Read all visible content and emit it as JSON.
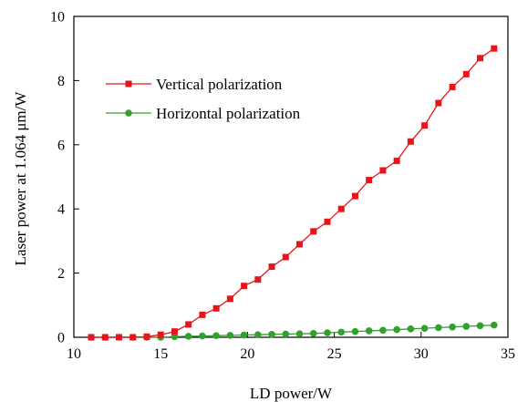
{
  "chart_data": {
    "type": "line",
    "xlabel": "LD power/W",
    "ylabel": "Laser power at 1.064 μm/W",
    "xlim": [
      10,
      35
    ],
    "ylim": [
      0,
      10
    ],
    "xticks": [
      10,
      15,
      20,
      25,
      30,
      35
    ],
    "yticks": [
      0,
      2,
      4,
      6,
      8,
      10
    ],
    "grid": false,
    "legend_position": "top-left",
    "series": [
      {
        "name": "Vertical polarization",
        "color": "#e8141c",
        "marker": "square",
        "x": [
          11.0,
          11.8,
          12.6,
          13.4,
          14.2,
          15.0,
          15.8,
          16.6,
          17.4,
          18.2,
          19.0,
          19.8,
          20.6,
          21.4,
          22.2,
          23.0,
          23.8,
          24.6,
          25.4,
          26.2,
          27.0,
          27.8,
          28.6,
          29.4,
          30.2,
          31.0,
          31.8,
          32.6,
          33.4,
          34.2
        ],
        "y": [
          0.0,
          0.0,
          0.0,
          0.0,
          0.02,
          0.08,
          0.18,
          0.4,
          0.7,
          0.9,
          1.2,
          1.6,
          1.8,
          2.2,
          2.5,
          2.9,
          3.3,
          3.6,
          4.0,
          4.4,
          4.9,
          5.2,
          5.5,
          6.1,
          6.6,
          7.3,
          7.8,
          8.2,
          8.7,
          9.0
        ]
      },
      {
        "name": "Horizontal polarization",
        "color": "#32a02c",
        "marker": "circle",
        "x": [
          11.0,
          11.8,
          12.6,
          13.4,
          14.2,
          15.0,
          15.8,
          16.6,
          17.4,
          18.2,
          19.0,
          19.8,
          20.6,
          21.4,
          22.2,
          23.0,
          23.8,
          24.6,
          25.4,
          26.2,
          27.0,
          27.8,
          28.6,
          29.4,
          30.2,
          31.0,
          31.8,
          32.6,
          33.4,
          34.2
        ],
        "y": [
          0.0,
          0.0,
          0.0,
          0.0,
          0.0,
          0.0,
          0.02,
          0.03,
          0.04,
          0.05,
          0.06,
          0.07,
          0.08,
          0.09,
          0.1,
          0.11,
          0.12,
          0.14,
          0.16,
          0.18,
          0.2,
          0.22,
          0.24,
          0.26,
          0.28,
          0.3,
          0.32,
          0.34,
          0.36,
          0.38
        ]
      }
    ]
  }
}
